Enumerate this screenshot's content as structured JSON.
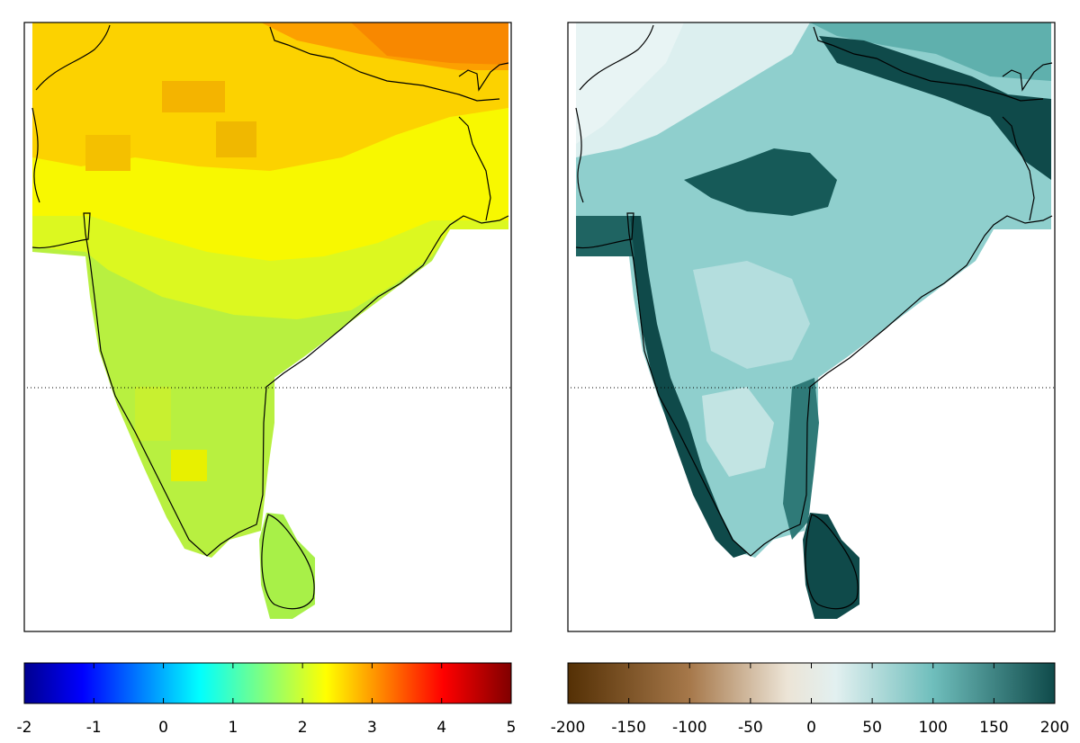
{
  "maps": [
    {
      "name": "temperature-change-map",
      "scheme": "jet"
    },
    {
      "name": "precipitation-change-map",
      "scheme": "brbg"
    }
  ],
  "colorbars": [
    {
      "name": "temperature-colorbar",
      "scheme": "jet",
      "range": [
        -2,
        5
      ],
      "ticks": [
        "-2",
        "-1",
        "0",
        "1",
        "2",
        "3",
        "4",
        "5"
      ]
    },
    {
      "name": "precipitation-colorbar",
      "scheme": "brbg",
      "range": [
        -200,
        200
      ],
      "ticks": [
        "-200",
        "-150",
        "-100",
        "-50",
        "0",
        "50",
        "100",
        "150",
        "200"
      ]
    }
  ],
  "colors": {
    "coastline": "#000000",
    "frame": "#000000",
    "jet": [
      "#00008f",
      "#0000ff",
      "#00ffff",
      "#ffff00",
      "#ff0000",
      "#800000"
    ],
    "brbg": [
      "#543005",
      "#a6784a",
      "#e8dcc8",
      "#e6f2f2",
      "#7ec9c6",
      "#0f4a4a"
    ]
  }
}
